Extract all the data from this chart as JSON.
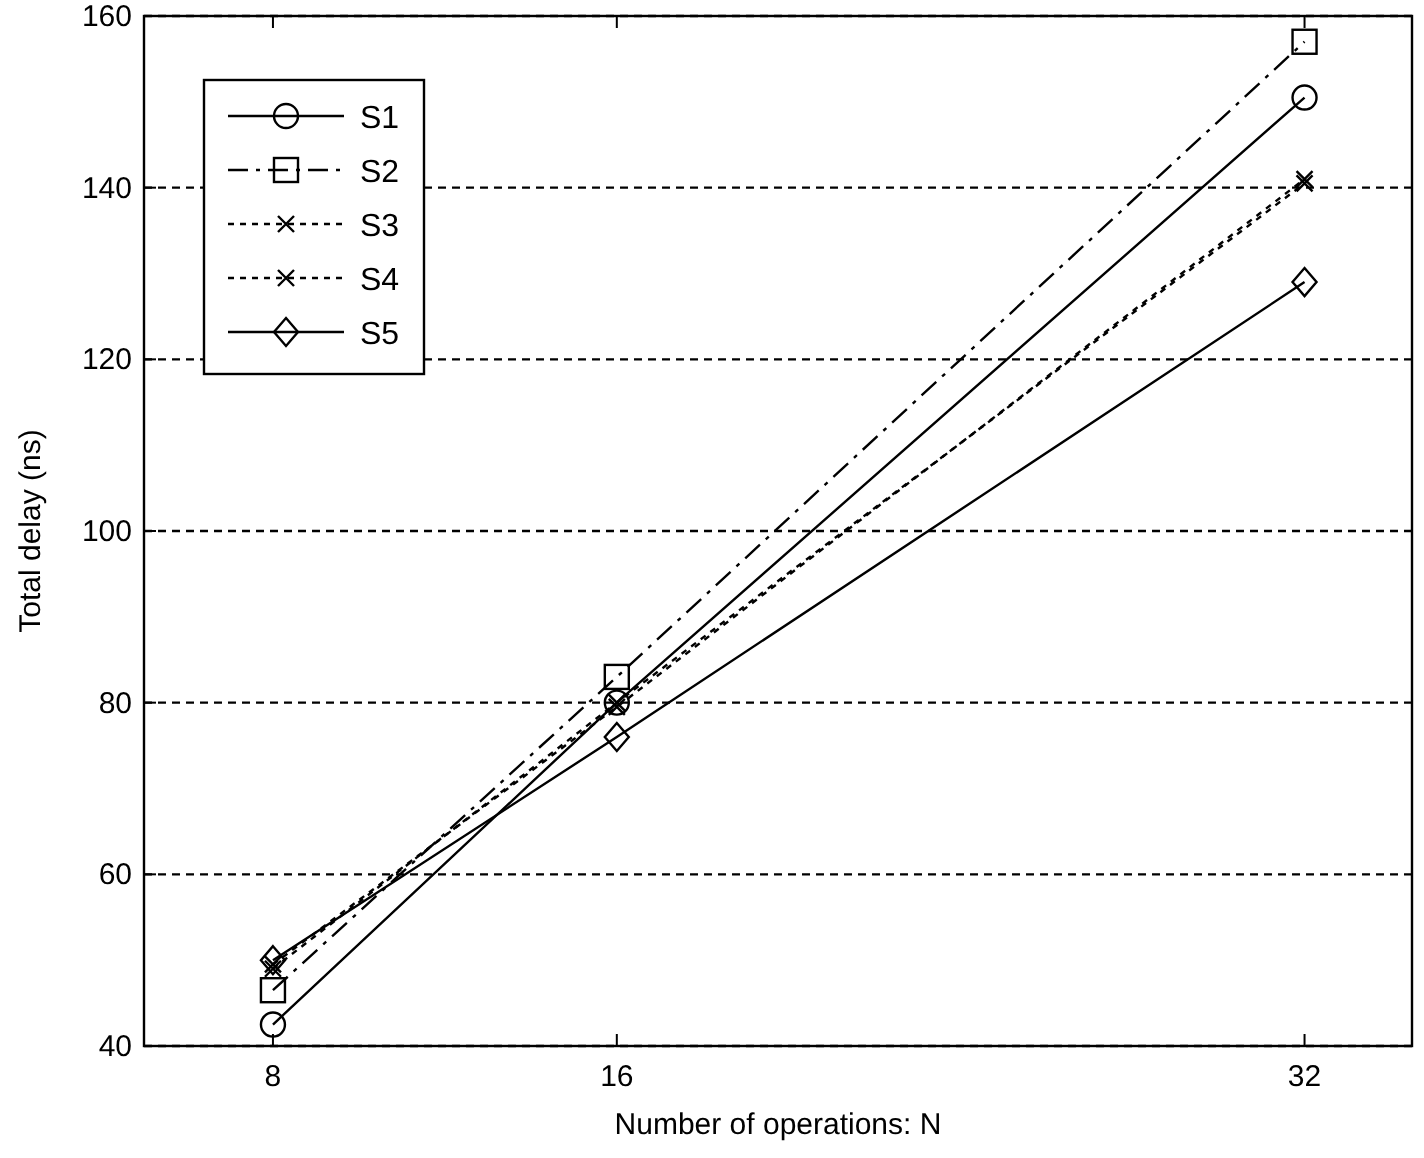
{
  "chart_data": {
    "type": "line",
    "xlabel": "Number of operations: N",
    "ylabel": "Total delay (ns)",
    "x": [
      8,
      16,
      32
    ],
    "xlim": [
      5,
      34.5
    ],
    "xticks": [
      8,
      16,
      32
    ],
    "ylim": [
      40,
      160
    ],
    "yticks": [
      40,
      60,
      80,
      100,
      120,
      140,
      160
    ],
    "grid": "y",
    "legend": "top left",
    "series": [
      {
        "name": "S1",
        "color": "#000000",
        "marker": "circle",
        "line_style": "solid",
        "values": [
          42.5,
          80,
          150.5
        ]
      },
      {
        "name": "S2",
        "color": "#000000",
        "marker": "square",
        "line_style": "dashed",
        "values": [
          46.5,
          83,
          157
        ]
      },
      {
        "name": "S3",
        "color": "#000000",
        "marker": "cross",
        "line_style": "dotted",
        "values": [
          49.5,
          79.5,
          141
        ]
      },
      {
        "name": "S4",
        "color": "#000000",
        "marker": "cross",
        "line_style": "dotted",
        "values": [
          49,
          80,
          140.5
        ]
      },
      {
        "name": "S5",
        "color": "#000000",
        "marker": "diamond",
        "line_style": "solid",
        "values": [
          50,
          76,
          129
        ]
      }
    ]
  }
}
